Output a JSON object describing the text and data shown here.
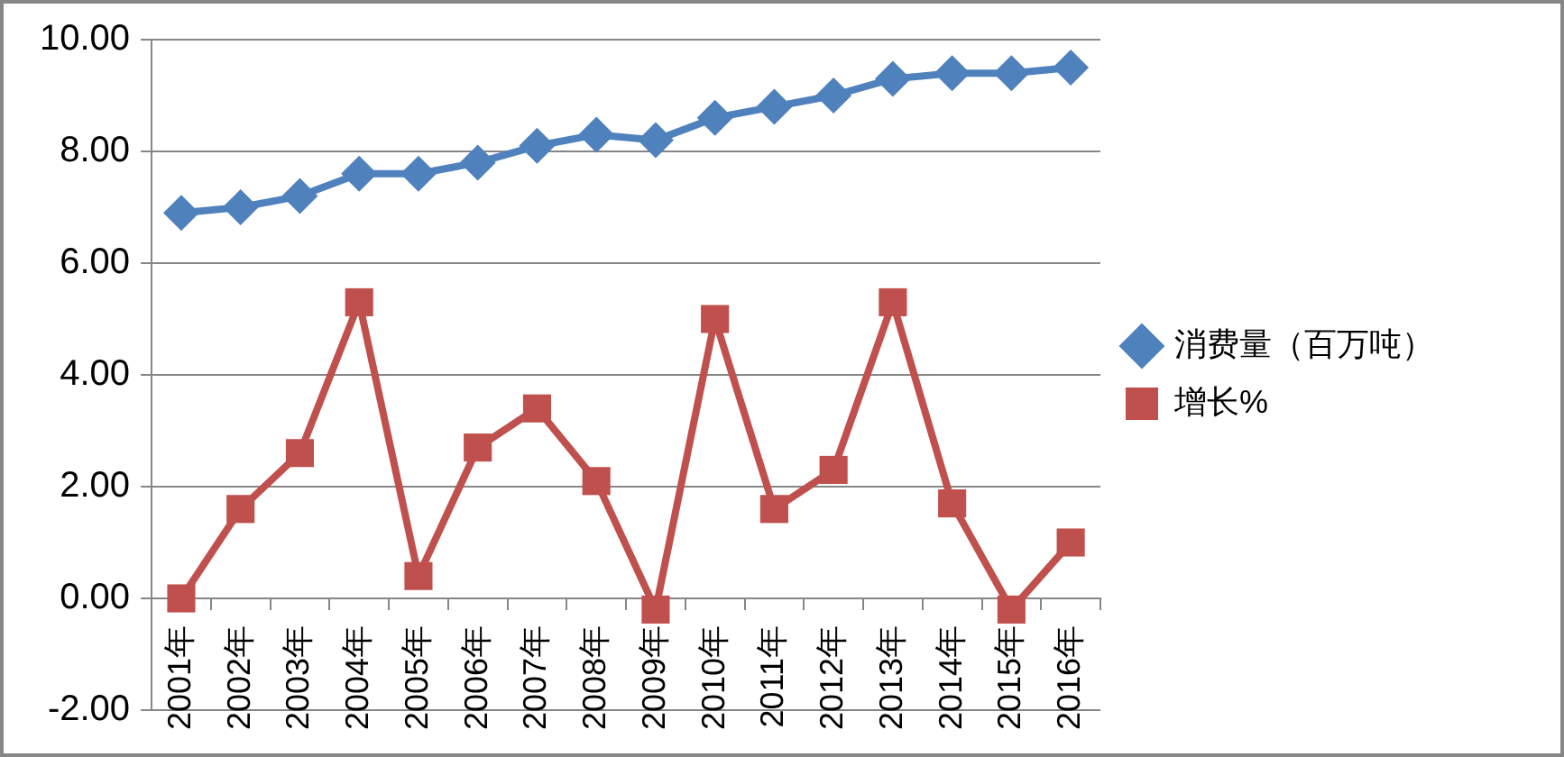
{
  "chart_data": {
    "type": "line",
    "categories": [
      "2001年",
      "2002年",
      "2003年",
      "2004年",
      "2005年",
      "2006年",
      "2007年",
      "2008年",
      "2009年",
      "2010年",
      "2011年",
      "2012年",
      "2013年",
      "2014年",
      "2015年",
      "2016年"
    ],
    "series": [
      {
        "name": "消费量（百万吨）",
        "color": "#4f81bd",
        "marker": "diamond",
        "values": [
          6.9,
          7.0,
          7.2,
          7.6,
          7.6,
          7.8,
          8.1,
          8.3,
          8.2,
          8.6,
          8.8,
          9.0,
          9.3,
          9.4,
          9.4,
          9.5
        ]
      },
      {
        "name": "增长%",
        "color": "#c0504d",
        "marker": "square",
        "values": [
          0.0,
          1.6,
          2.6,
          5.3,
          0.4,
          2.7,
          3.4,
          2.1,
          -0.2,
          5.0,
          1.6,
          2.3,
          5.3,
          1.7,
          -0.2,
          1.0
        ]
      }
    ],
    "ylim": [
      -2,
      10
    ],
    "yticks": [
      {
        "value": -2,
        "label": "-2.00"
      },
      {
        "value": 0,
        "label": "0.00"
      },
      {
        "value": 2,
        "label": "2.00"
      },
      {
        "value": 4,
        "label": "4.00"
      },
      {
        "value": 6,
        "label": "6.00"
      },
      {
        "value": 8,
        "label": "8.00"
      },
      {
        "value": 10,
        "label": "10.00"
      }
    ],
    "grid": "y",
    "legend": "right"
  }
}
